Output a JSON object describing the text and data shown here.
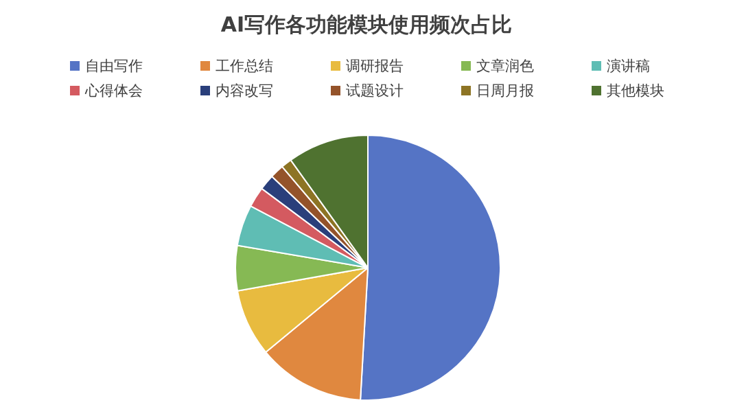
{
  "chart_data": {
    "type": "pie",
    "title": "AI写作各功能模块使用频次占比",
    "categories": [
      "自由写作",
      "工作总结",
      "调研报告",
      "文章润色",
      "演讲稿",
      "心得体会",
      "内容改写",
      "试题设计",
      "日周月报",
      "其他模块"
    ],
    "values": [
      50.9,
      13.1,
      8.2,
      5.5,
      5.0,
      2.5,
      1.9,
      1.7,
      1.3,
      9.9
    ],
    "colors": [
      "#5574c5",
      "#e0883f",
      "#e8bb3f",
      "#86b954",
      "#5fbdb4",
      "#d45a60",
      "#2a3f7b",
      "#94532a",
      "#8d7424",
      "#4f7230"
    ],
    "legend": "top"
  }
}
